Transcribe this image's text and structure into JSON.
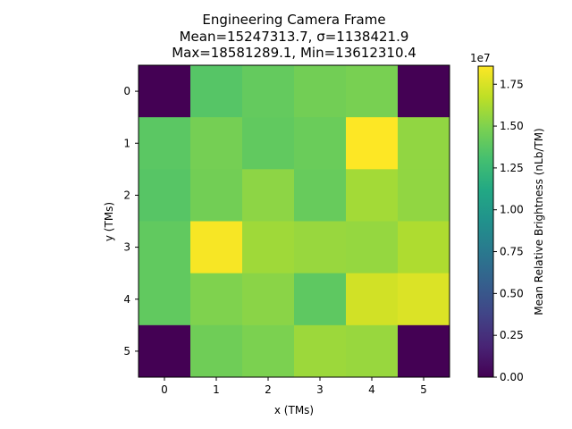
{
  "chart_data": {
    "type": "heatmap",
    "title_lines": [
      "Engineering Camera Frame",
      "Mean=15247313.7, σ=1138421.9",
      "Max=18581289.1, Min=13612310.4"
    ],
    "xlabel": "x (TMs)",
    "ylabel": "y (TMs)",
    "x": [
      0,
      1,
      2,
      3,
      4,
      5
    ],
    "y": [
      0,
      1,
      2,
      3,
      4,
      5
    ],
    "values": [
      [
        0,
        13612310,
        14100000,
        14600000,
        14800000,
        0
      ],
      [
        13800000,
        14700000,
        14000000,
        14300000,
        18581289,
        15500000
      ],
      [
        13650000,
        14600000,
        15400000,
        14200000,
        16000000,
        15500000
      ],
      [
        14000000,
        18400000,
        15900000,
        15700000,
        15600000,
        16300000
      ],
      [
        14000000,
        15000000,
        15300000,
        13900000,
        17300000,
        17600000
      ],
      [
        0,
        14500000,
        14900000,
        15800000,
        15700000,
        0
      ]
    ],
    "vmin": 0,
    "vmax": 18581289.1,
    "colormap": "viridis",
    "colorbar": {
      "label": "Mean Relative Brightness (nLb/TM)",
      "multiplier": "1e7",
      "ticks": [
        0.0,
        0.25,
        0.5,
        0.75,
        1.0,
        1.25,
        1.5,
        1.75
      ],
      "tick_labels": [
        "0.00",
        "0.25",
        "0.50",
        "0.75",
        "1.00",
        "1.25",
        "1.50",
        "1.75"
      ]
    },
    "grid": false
  }
}
